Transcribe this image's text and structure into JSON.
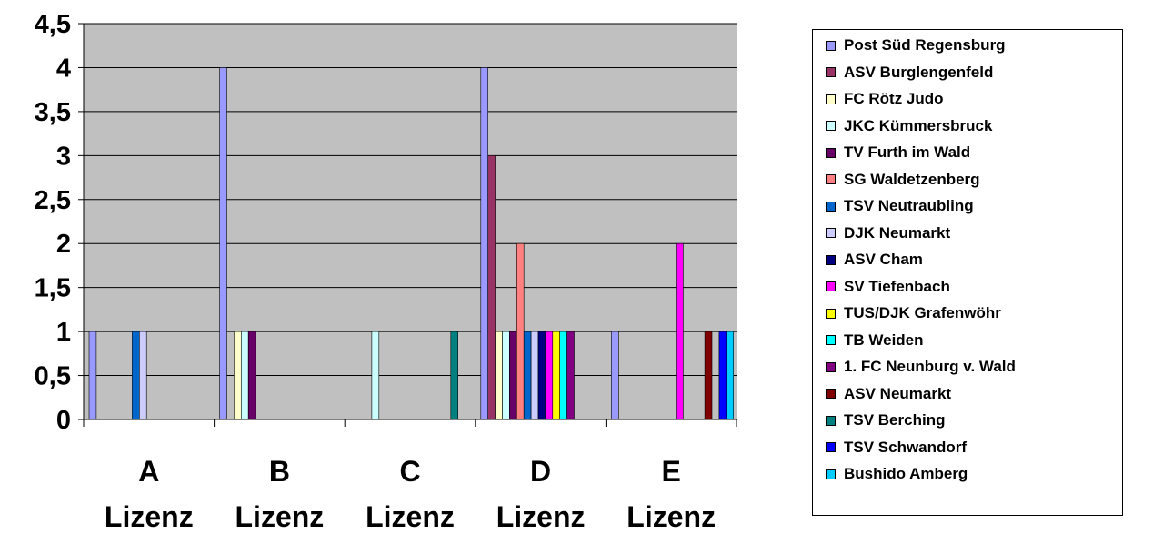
{
  "chart_data": {
    "type": "bar",
    "categories": [
      [
        "A",
        "Lizenz"
      ],
      [
        "B",
        "Lizenz"
      ],
      [
        "C",
        "Lizenz"
      ],
      [
        "D",
        "Lizenz"
      ],
      [
        "E",
        "Lizenz"
      ]
    ],
    "ylim": [
      0,
      4.5
    ],
    "yticks": [
      "0",
      "0,5",
      "1",
      "1,5",
      "2",
      "2,5",
      "3",
      "3,5",
      "4",
      "4,5"
    ],
    "grid": true,
    "legend_position": "right",
    "plot_background": "#c0c0c0",
    "series": [
      {
        "name": "Post Süd Regensburg",
        "color": "#9999ff",
        "values": [
          1,
          4,
          0,
          4,
          1
        ]
      },
      {
        "name": "ASV Burglengenfeld",
        "color": "#993366",
        "values": [
          0,
          0,
          0,
          3,
          0
        ]
      },
      {
        "name": " FC Rötz Judo",
        "color": "#ffffcc",
        "values": [
          0,
          1,
          0,
          1,
          0
        ]
      },
      {
        "name": "JKC Kümmersbruck",
        "color": "#ccffff",
        "values": [
          0,
          1,
          1,
          1,
          0
        ]
      },
      {
        "name": "TV Furth im Wald",
        "color": "#660066",
        "values": [
          0,
          1,
          0,
          1,
          0
        ]
      },
      {
        "name": "SG Waldetzenberg",
        "color": "#ff8080",
        "values": [
          0,
          0,
          0,
          2,
          0
        ]
      },
      {
        "name": "TSV Neutraubling",
        "color": "#0066cc",
        "values": [
          1,
          0,
          0,
          1,
          0
        ]
      },
      {
        "name": "DJK Neumarkt",
        "color": "#ccccff",
        "values": [
          1,
          0,
          0,
          1,
          0
        ]
      },
      {
        "name": "ASV Cham",
        "color": "#000080",
        "values": [
          0,
          0,
          0,
          1,
          0
        ]
      },
      {
        "name": "SV Tiefenbach",
        "color": "#ff00ff",
        "values": [
          0,
          0,
          0,
          1,
          2
        ]
      },
      {
        "name": "TUS/DJK Grafenwöhr",
        "color": "#ffff00",
        "values": [
          0,
          0,
          0,
          1,
          0
        ]
      },
      {
        "name": "TB Weiden",
        "color": "#00ffff",
        "values": [
          0,
          0,
          0,
          1,
          0
        ]
      },
      {
        "name": "1. FC Neunburg v. Wald",
        "color": "#800080",
        "values": [
          0,
          0,
          0,
          1,
          0
        ]
      },
      {
        "name": "ASV Neumarkt",
        "color": "#800000",
        "values": [
          0,
          0,
          0,
          0,
          1
        ]
      },
      {
        "name": "TSV Berching",
        "color": "#008080",
        "values": [
          0,
          0,
          1,
          0,
          0
        ]
      },
      {
        "name": "TSV Schwandorf",
        "color": "#0000ff",
        "values": [
          0,
          0,
          0,
          0,
          1
        ]
      },
      {
        "name": "Bushido Amberg",
        "color": "#00ccff",
        "values": [
          0,
          0,
          0,
          0,
          1
        ]
      }
    ]
  }
}
